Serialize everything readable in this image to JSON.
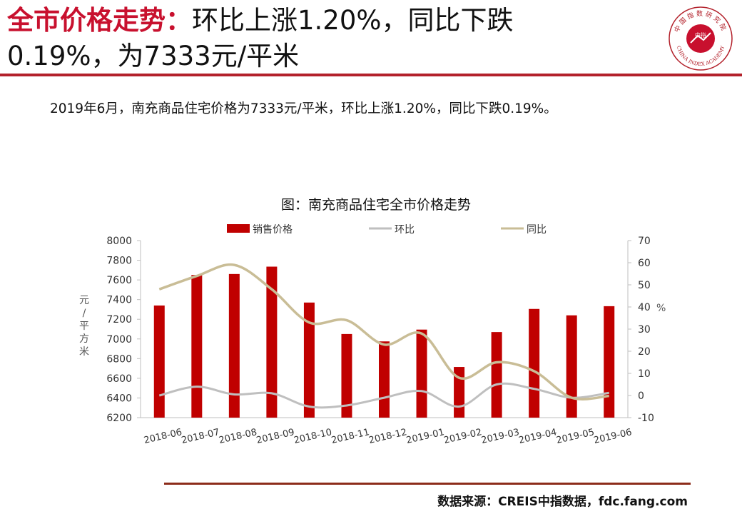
{
  "header": {
    "title_lead": "全市价格走势：",
    "title_rest": "环比上涨1.20%，同比下跌",
    "title_line2": "0.19%，为7333元/平米",
    "logo_center": "中指",
    "logo_top_text": "中国指数研究院",
    "logo_bottom_text": "CHINA INDEX ACADEMY"
  },
  "summary": "2019年6月，南充商品住宅价格为7333元/平米，环比上涨1.20%，同比下跌0.19%。",
  "colors": {
    "bar": "#c00000",
    "mom": "#bfbfbf",
    "yoy": "#c9bd96",
    "accent": "#c8102e"
  },
  "chart_data": {
    "type": "bar",
    "title": "图：南充商品住宅全市价格走势",
    "categories": [
      "2018-06",
      "2018-07",
      "2018-08",
      "2018-09",
      "2018-10",
      "2018-11",
      "2018-12",
      "2019-01",
      "2019-02",
      "2019-03",
      "2019-04",
      "2019-05",
      "2019-06"
    ],
    "series": [
      {
        "name": "销售价格",
        "type": "bar",
        "axis": "left",
        "values": [
          7340,
          7650,
          7660,
          7735,
          7370,
          7050,
          6975,
          7095,
          6715,
          7070,
          7305,
          7240,
          7333
        ]
      },
      {
        "name": "环比",
        "type": "line",
        "axis": "right",
        "values": [
          0,
          4,
          0.5,
          1,
          -5,
          -4.5,
          -1,
          2,
          -5,
          5,
          3,
          -1,
          1.2
        ]
      },
      {
        "name": "同比",
        "type": "line",
        "axis": "right",
        "values": [
          48,
          54,
          59,
          48,
          33,
          34,
          23,
          28,
          8,
          15,
          11,
          -1,
          -0.19
        ]
      }
    ],
    "ylabel": "元/平方米",
    "ylim": [
      6200,
      8000
    ],
    "yticks": [
      6200,
      6400,
      6600,
      6800,
      7000,
      7200,
      7400,
      7600,
      7800,
      8000
    ],
    "y2label": "%",
    "y2lim": [
      -10,
      70
    ],
    "y2ticks": [
      -10,
      0,
      10,
      20,
      30,
      40,
      50,
      60,
      70
    ],
    "grid": false,
    "legend": "top"
  },
  "source": "数据来源：CREIS中指数据，fdc.fang.com"
}
